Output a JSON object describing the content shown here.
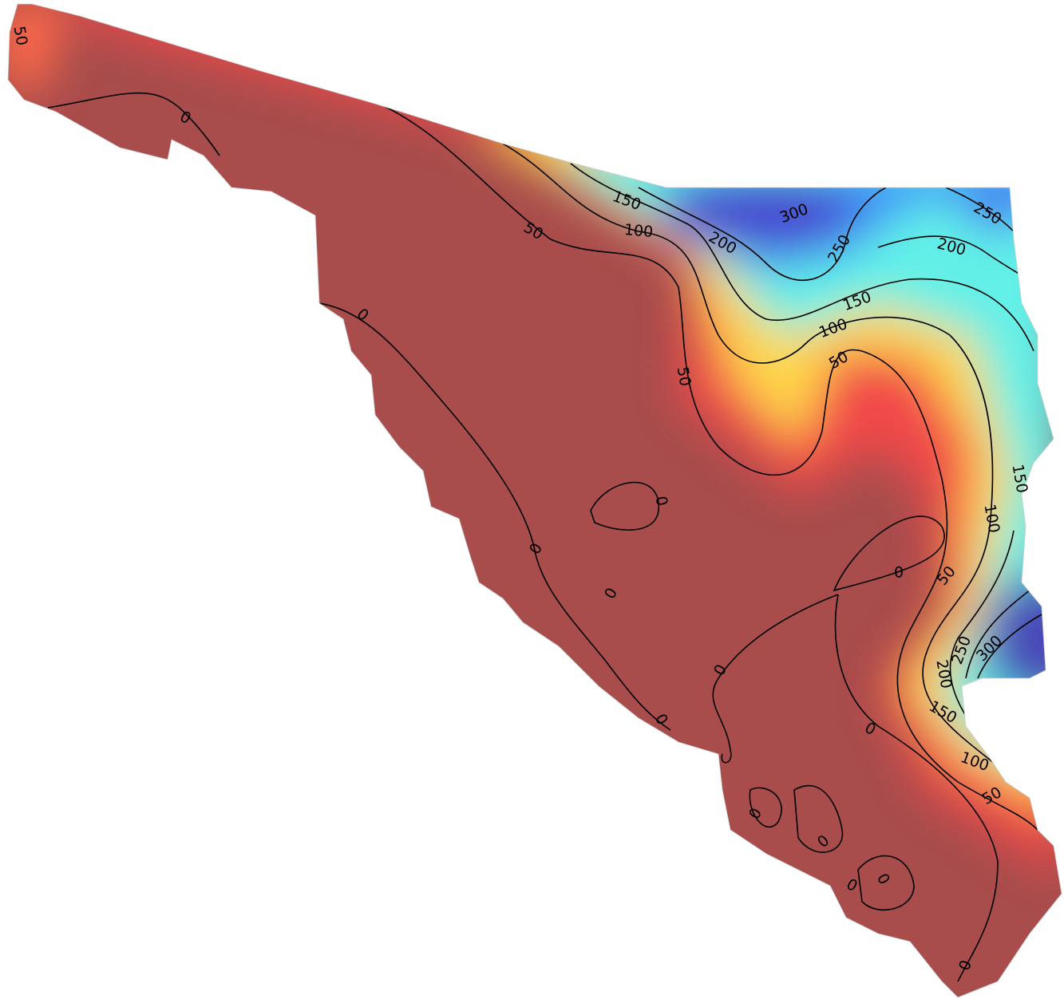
{
  "map": {
    "contour_labels": [
      50,
      0,
      150,
      100,
      50,
      300,
      250,
      200,
      200,
      250,
      150,
      100,
      50,
      0,
      50,
      150,
      100,
      0,
      0,
      0,
      0,
      50,
      300,
      250,
      200,
      0,
      150,
      0,
      0,
      100,
      50,
      0,
      0,
      0,
      0,
      0
    ]
  }
}
